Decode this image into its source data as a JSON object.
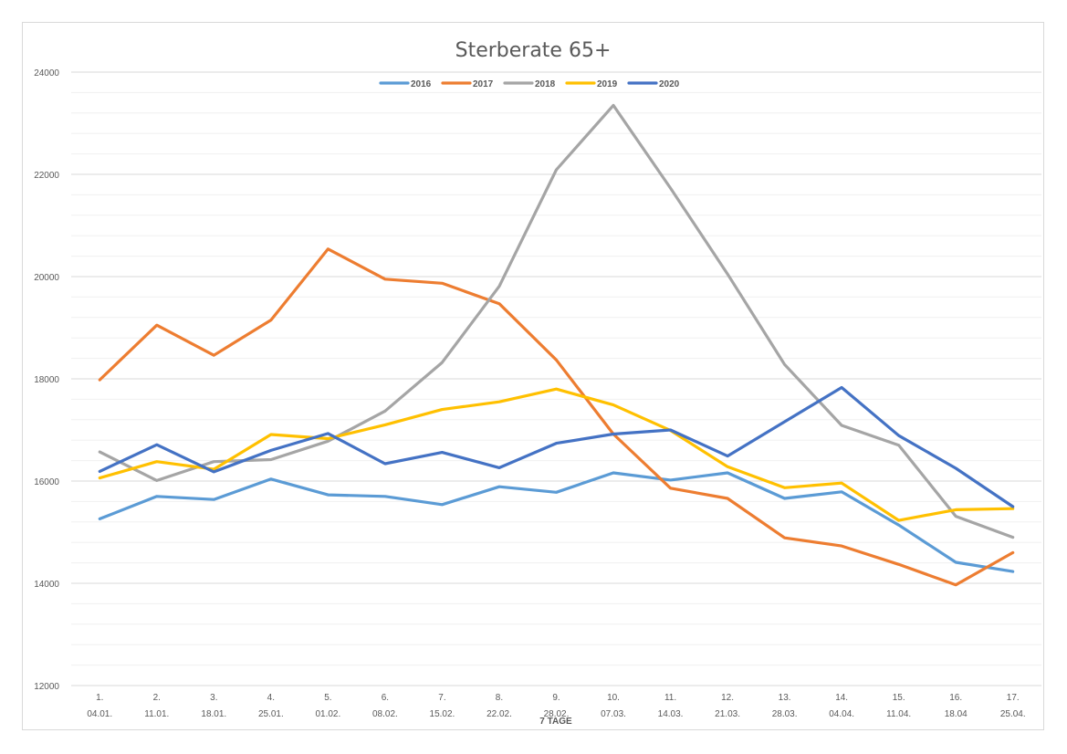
{
  "chart_data": {
    "type": "line",
    "title": "Sterberate 65+",
    "xlabel": "7 TAGE",
    "ylabel": "",
    "ylim": [
      12000,
      24000
    ],
    "yticks": [
      12000,
      14000,
      16000,
      18000,
      20000,
      22000,
      24000
    ],
    "minor_grid_step": 400,
    "legend_position": "top-center",
    "categories": [
      [
        "1.",
        "04.01."
      ],
      [
        "2.",
        "11.01."
      ],
      [
        "3.",
        "18.01."
      ],
      [
        "4.",
        "25.01."
      ],
      [
        "5.",
        "01.02."
      ],
      [
        "6.",
        "08.02."
      ],
      [
        "7.",
        "15.02."
      ],
      [
        "8.",
        "22.02."
      ],
      [
        "9.",
        "28.02."
      ],
      [
        "10.",
        "07.03."
      ],
      [
        "11.",
        "14.03."
      ],
      [
        "12.",
        "21.03."
      ],
      [
        "13.",
        "28.03."
      ],
      [
        "14.",
        "04.04."
      ],
      [
        "15.",
        "11.04."
      ],
      [
        "16.",
        "18.04"
      ],
      [
        "17.",
        "25.04."
      ]
    ],
    "series": [
      {
        "name": "2016",
        "color": "#5b9bd5",
        "values": [
          15260,
          15700,
          15640,
          16040,
          15730,
          15700,
          15540,
          15890,
          15780,
          16160,
          16020,
          16160,
          15660,
          15790,
          15140,
          14410,
          14230
        ]
      },
      {
        "name": "2017",
        "color": "#ed7d31",
        "values": [
          17980,
          19050,
          18460,
          19150,
          20540,
          19950,
          19870,
          19470,
          18370,
          16920,
          15860,
          15660,
          14890,
          14730,
          14370,
          13970,
          14600
        ]
      },
      {
        "name": "2018",
        "color": "#a5a5a5",
        "values": [
          16570,
          16010,
          16380,
          16420,
          16780,
          17370,
          18320,
          19810,
          22090,
          23350,
          21730,
          20050,
          18280,
          17090,
          16700,
          15310,
          14900
        ]
      },
      {
        "name": "2019",
        "color": "#ffc000",
        "values": [
          16060,
          16380,
          16230,
          16910,
          16830,
          17100,
          17400,
          17550,
          17800,
          17490,
          16990,
          16280,
          15870,
          15960,
          15230,
          15440,
          15460
        ]
      },
      {
        "name": "2020",
        "color": "#4472c4",
        "values": [
          16190,
          16710,
          16180,
          16600,
          16930,
          16340,
          16560,
          16260,
          16740,
          16920,
          17000,
          16490,
          17160,
          17830,
          16890,
          16250,
          15500
        ]
      }
    ]
  }
}
